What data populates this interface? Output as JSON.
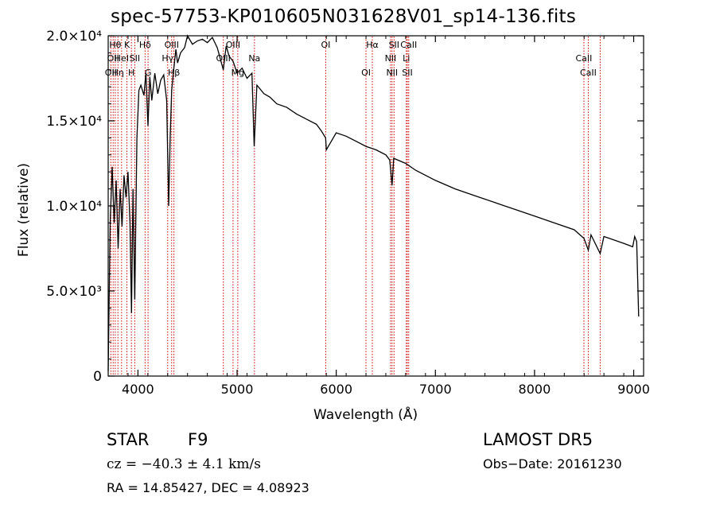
{
  "chart_data": {
    "type": "line",
    "title": "spec-57753-KP010605N031628V01_sp14-136.fits",
    "xlabel": "Wavelength (Å)",
    "ylabel": "Flux (relative)",
    "xlim": [
      3700,
      9100
    ],
    "ylim": [
      0,
      20000
    ],
    "x_ticks": [
      4000,
      5000,
      6000,
      7000,
      8000,
      9000
    ],
    "x_tick_labels": [
      "4000",
      "5000",
      "6000",
      "7000",
      "8000",
      "9000"
    ],
    "y_ticks": [
      0,
      5000,
      10000,
      15000,
      20000
    ],
    "y_tick_labels": [
      "0",
      "5.0×10³",
      "1.0×10⁴",
      "1.5×10⁴",
      "2.0×10⁴"
    ],
    "grid": false,
    "series": [
      {
        "x": [
          3700,
          3720,
          3740,
          3760,
          3780,
          3800,
          3820,
          3840,
          3860,
          3880,
          3900,
          3920,
          3935,
          3950,
          3968,
          3990,
          4010,
          4030,
          4060,
          4080,
          4101,
          4120,
          4140,
          4170,
          4200,
          4230,
          4260,
          4290,
          4310,
          4325,
          4340,
          4360,
          4383,
          4400,
          4430,
          4470,
          4500,
          4550,
          4600,
          4650,
          4700,
          4750,
          4800,
          4861,
          4890,
          4920,
          4960,
          5000,
          5050,
          5100,
          5150,
          5172,
          5200,
          5270,
          5330,
          5400,
          5500,
          5600,
          5700,
          5800,
          5850,
          5893,
          5900,
          6000,
          6100,
          6200,
          6300,
          6400,
          6500,
          6540,
          6563,
          6580,
          6700,
          6800,
          7000,
          7200,
          7400,
          7600,
          7800,
          8000,
          8200,
          8400,
          8498,
          8542,
          8570,
          8662,
          8700,
          8900,
          8990,
          9010,
          9030,
          9050
        ],
        "y": [
          300,
          9000,
          12300,
          9000,
          11500,
          7500,
          11000,
          8800,
          11800,
          10500,
          12000,
          9000,
          3700,
          11000,
          4500,
          14000,
          16800,
          17100,
          16500,
          17800,
          14700,
          17600,
          16200,
          17800,
          16600,
          17400,
          17700,
          16200,
          10000,
          14000,
          16800,
          18000,
          19200,
          18400,
          19000,
          19300,
          20000,
          19500,
          19700,
          19800,
          19600,
          19900,
          19300,
          18000,
          19400,
          18800,
          18500,
          17800,
          18100,
          17500,
          17800,
          13500,
          17100,
          16600,
          16400,
          16000,
          15800,
          15400,
          15100,
          14800,
          14400,
          14000,
          13300,
          14300,
          14100,
          13800,
          13500,
          13300,
          13000,
          12700,
          11200,
          12800,
          12500,
          12100,
          11500,
          11000,
          10600,
          10200,
          9800,
          9400,
          9000,
          8600,
          8100,
          7400,
          8300,
          7200,
          8200,
          7800,
          7600,
          8200,
          7900,
          3500
        ]
      }
    ],
    "line_color": "#000000",
    "marker_color": "#cc0000",
    "line_markers": [
      {
        "x": 3727,
        "label": "OII",
        "row": 2
      },
      {
        "x": 3750,
        "label": "OII",
        "row": 1
      },
      {
        "x": 3771,
        "label": "Hθ",
        "row": 0
      },
      {
        "x": 3798,
        "label": "Hη",
        "row": 2
      },
      {
        "x": 3835,
        "label": "HeI",
        "row": 1
      },
      {
        "x": 3889,
        "label": "K",
        "row": 0
      },
      {
        "x": 3934,
        "label": "H",
        "row": 2
      },
      {
        "x": 3968,
        "label": "SII",
        "row": 1
      },
      {
        "x": 4072,
        "label": "Hδ",
        "row": 0
      },
      {
        "x": 4102,
        "label": "G",
        "row": 2
      },
      {
        "x": 4300,
        "label": "Hγ",
        "row": 1
      },
      {
        "x": 4340,
        "label": "OIII",
        "row": 0
      },
      {
        "x": 4363,
        "label": "Hβ",
        "row": 2
      },
      {
        "x": 4861,
        "label": "OIII",
        "row": 1
      },
      {
        "x": 4959,
        "label": "OIII",
        "row": 0
      },
      {
        "x": 5007,
        "label": "Mg",
        "row": 2
      },
      {
        "x": 5175,
        "label": "Na",
        "row": 1
      },
      {
        "x": 5894,
        "label": "OI",
        "row": 0
      },
      {
        "x": 6300,
        "label": "OI",
        "row": 2
      },
      {
        "x": 6364,
        "label": "Hα",
        "row": 0
      },
      {
        "x": 6548,
        "label": "NII",
        "row": 1
      },
      {
        "x": 6563,
        "label": "NII",
        "row": 2
      },
      {
        "x": 6583,
        "label": "SII",
        "row": 0
      },
      {
        "x": 6707,
        "label": "Li",
        "row": 1
      },
      {
        "x": 6717,
        "label": "SII",
        "row": 2
      },
      {
        "x": 6731,
        "label": "CaII",
        "row": 0
      },
      {
        "x": 8498,
        "label": "CaII",
        "row": 1
      },
      {
        "x": 8542,
        "label": "CaII",
        "row": 2
      },
      {
        "x": 8662,
        "label": "",
        "row": 0
      }
    ]
  },
  "info": {
    "object_class": "STAR",
    "subclass": "F9",
    "survey": "LAMOST DR5",
    "redshift": "cz = −40.3 ± 4.1 km/s",
    "obs_date": "Obs−Date: 20161230",
    "coords": "RA =  14.85427, DEC =   4.08923"
  }
}
